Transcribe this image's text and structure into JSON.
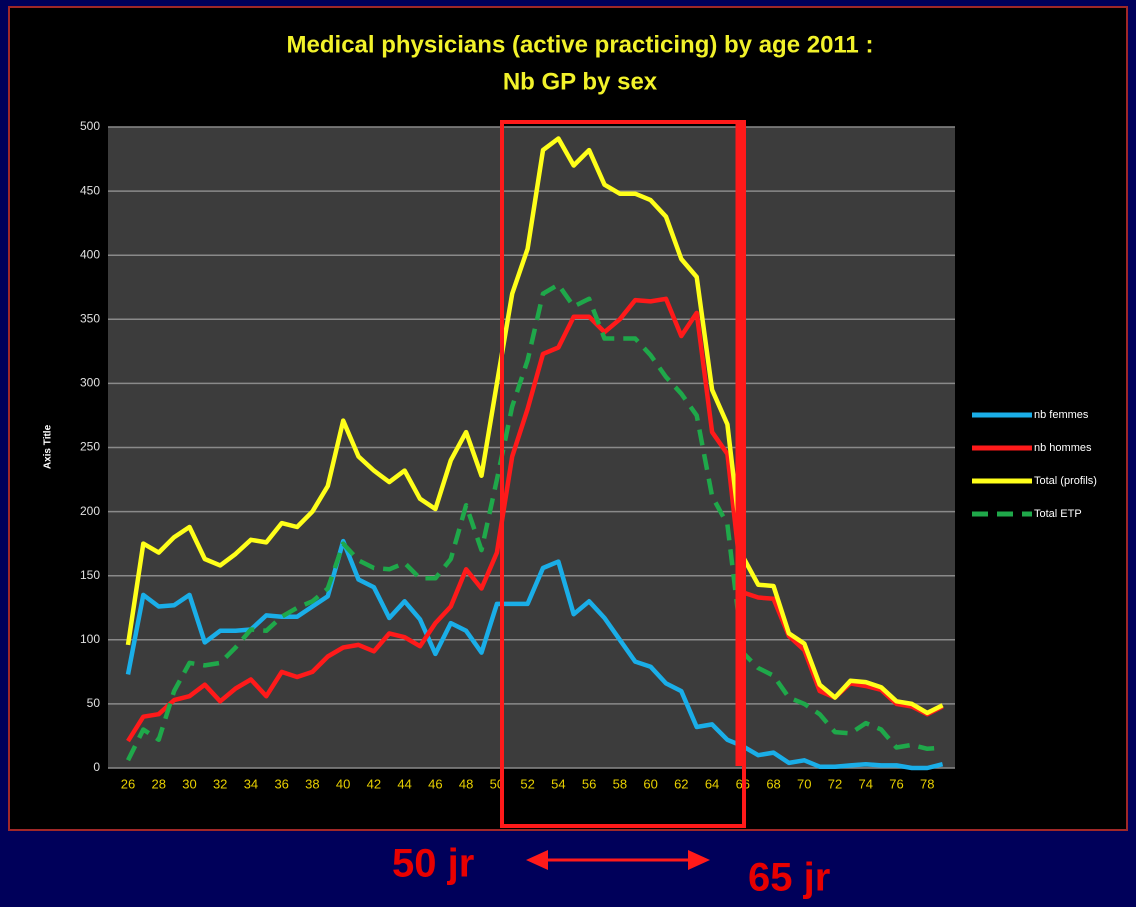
{
  "chart_data": {
    "type": "line",
    "title": "Medical physicians (active practicing) by age 2011 :",
    "subtitle": "Nb  GP by sex",
    "y_label": "Axis Title",
    "annotations": [
      "50 jr",
      "65 jr"
    ],
    "x": [
      26,
      27,
      28,
      29,
      30,
      31,
      32,
      33,
      34,
      35,
      36,
      37,
      38,
      39,
      40,
      41,
      42,
      43,
      44,
      45,
      46,
      47,
      48,
      49,
      50,
      51,
      52,
      53,
      54,
      55,
      56,
      57,
      58,
      59,
      60,
      61,
      62,
      63,
      64,
      65,
      66,
      67,
      68,
      69,
      70,
      71,
      72,
      73,
      74,
      75,
      76,
      77,
      78,
      79
    ],
    "xlim": [
      25,
      80
    ],
    "xticks": [
      26,
      28,
      30,
      32,
      34,
      36,
      38,
      40,
      42,
      44,
      46,
      48,
      50,
      52,
      54,
      56,
      58,
      60,
      62,
      64,
      66,
      68,
      70,
      72,
      74,
      76,
      78
    ],
    "ylim": [
      0,
      500
    ],
    "yticks": [
      0,
      50,
      100,
      150,
      200,
      250,
      300,
      350,
      400,
      450,
      500
    ],
    "grid": true,
    "legend": "right",
    "series": [
      {
        "name": "nb femmes",
        "color": "#1aaee8",
        "dashed": false,
        "values": [
          73,
          135,
          126,
          127,
          135,
          98,
          107,
          107,
          108,
          119,
          118,
          118,
          126,
          134,
          177,
          147,
          141,
          117,
          130,
          116,
          89,
          113,
          107,
          90,
          128,
          128,
          128,
          156,
          161,
          120,
          130,
          117,
          100,
          83,
          79,
          66,
          60,
          32,
          34,
          22,
          17,
          10,
          12,
          4,
          6,
          1,
          1,
          2,
          3,
          2,
          2,
          0,
          0,
          3
        ]
      },
      {
        "name": "nb hommes",
        "color": "#ff1a1a",
        "dashed": false,
        "values": [
          21,
          40,
          42,
          53,
          56,
          65,
          52,
          62,
          69,
          56,
          75,
          71,
          75,
          87,
          94,
          96,
          91,
          105,
          102,
          95,
          113,
          126,
          155,
          140,
          168,
          243,
          280,
          323,
          328,
          352,
          352,
          340,
          350,
          365,
          364,
          366,
          337,
          355,
          262,
          245,
          137,
          133,
          132,
          103,
          92,
          60,
          55,
          66,
          64,
          61,
          50,
          48,
          42,
          48
        ]
      },
      {
        "name": "Total (profils)",
        "color": "#ffff1a",
        "dashed": false,
        "values": [
          96,
          175,
          168,
          180,
          188,
          163,
          158,
          167,
          178,
          176,
          191,
          188,
          200,
          220,
          271,
          243,
          232,
          223,
          232,
          210,
          202,
          240,
          262,
          228,
          300,
          370,
          405,
          482,
          491,
          470,
          482,
          455,
          448,
          448,
          443,
          430,
          397,
          383,
          295,
          268,
          165,
          143,
          142,
          105,
          97,
          65,
          55,
          68,
          67,
          63,
          52,
          50,
          43,
          49
        ]
      },
      {
        "name": "Total ETP",
        "color": "#1fa84a",
        "dashed": true,
        "values": [
          6,
          30,
          22,
          60,
          82,
          80,
          82,
          94,
          108,
          107,
          118,
          125,
          130,
          140,
          175,
          162,
          156,
          155,
          160,
          148,
          148,
          163,
          205,
          170,
          225,
          282,
          318,
          370,
          377,
          360,
          366,
          335,
          335,
          335,
          322,
          305,
          292,
          275,
          212,
          190,
          90,
          78,
          72,
          55,
          50,
          42,
          28,
          27,
          35,
          30,
          16,
          18,
          15,
          16
        ]
      }
    ]
  }
}
